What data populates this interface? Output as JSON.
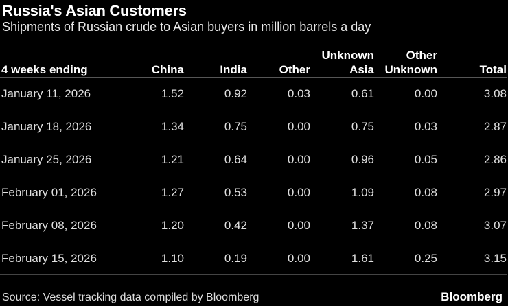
{
  "chart_data": {
    "type": "table",
    "title": "Russia's Asian Customers",
    "subtitle": "Shipments of Russian crude to Asian buyers in million barrels a day",
    "columns": [
      "4 weeks ending",
      "China",
      "India",
      "Other",
      "Unknown Asia",
      "Other Unknown",
      "Total"
    ],
    "rows": [
      [
        "January 11, 2026",
        "1.52",
        "0.92",
        "0.03",
        "0.61",
        "0.00",
        "3.08"
      ],
      [
        "January 18, 2026",
        "1.34",
        "0.75",
        "0.00",
        "0.75",
        "0.03",
        "2.87"
      ],
      [
        "January 25, 2026",
        "1.21",
        "0.64",
        "0.00",
        "0.96",
        "0.05",
        "2.86"
      ],
      [
        "February 01, 2026",
        "1.27",
        "0.53",
        "0.00",
        "1.09",
        "0.08",
        "2.97"
      ],
      [
        "February 08, 2026",
        "1.20",
        "0.42",
        "0.00",
        "1.37",
        "0.08",
        "3.07"
      ],
      [
        "February 15, 2026",
        "1.10",
        "0.19",
        "0.00",
        "1.61",
        "0.25",
        "3.15"
      ]
    ],
    "source": "Source: Vessel tracking data compiled by Bloomberg",
    "brand": "Bloomberg"
  },
  "colors": {
    "background": "#000000",
    "text": "#ffffff",
    "rule": "#444444"
  }
}
